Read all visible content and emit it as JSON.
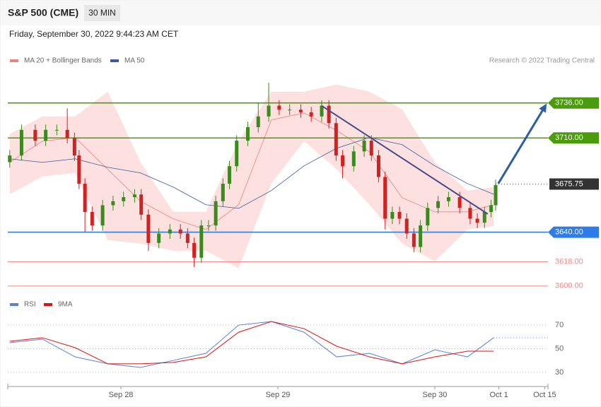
{
  "chart_data": {
    "type": "candlestick",
    "title": "S&P 500 (CME)",
    "timeframe": "30 MIN",
    "subtitle": "Friday, September 30, 2022 9:44:23 AM CET",
    "credit": "Research © 2022 Trading Central",
    "x": [
      7.0,
      8.8,
      10.9,
      12.5,
      14.2,
      15.8,
      16.9,
      17.6,
      18.5,
      19.6,
      21.2,
      22.8,
      24.4,
      26.1,
      27.1,
      28.2,
      29.8,
      31.5,
      33.1,
      34.2,
      35.2,
      36.3,
      37.4,
      38.5,
      39.6,
      40.6,
      41.7,
      43.4,
      45.0,
      46.6,
      48.2,
      49.8,
      51.5,
      53.1,
      54.7,
      55.8,
      56.9,
      57.9,
      59.6,
      61.2,
      62.3,
      63.4,
      64.4,
      65.5,
      66.6,
      67.7,
      68.8,
      69.8,
      70.9,
      72.5,
      74.1,
      75.8,
      77.4,
      78.5,
      79.6,
      80.6,
      81.3
    ],
    "open": [
      3692,
      3697,
      3716,
      3708,
      3716,
      3716,
      3710,
      3697,
      3676,
      3655,
      3645,
      3660,
      3663,
      3666,
      3668,
      3653,
      3632,
      3639,
      3642,
      3639,
      3632,
      3621,
      3645,
      3645,
      3663,
      3676,
      3689,
      3708,
      3718,
      3726,
      3734,
      3731,
      3731,
      3729,
      3726,
      3734,
      3721,
      3697,
      3689,
      3700,
      3708,
      3697,
      3681,
      3650,
      3655,
      3650,
      3639,
      3629,
      3645,
      3658,
      3663,
      3666,
      3658,
      3650,
      3647,
      3655,
      3660
    ],
    "high": [
      3701,
      3720,
      3720,
      3720,
      3720,
      3732,
      3714,
      3701,
      3680,
      3659,
      3664,
      3667,
      3670,
      3672,
      3672,
      3657,
      3643,
      3646,
      3646,
      3643,
      3636,
      3649,
      3649,
      3667,
      3680,
      3693,
      3712,
      3722,
      3736,
      3751,
      3738,
      3735,
      3735,
      3733,
      3738,
      3738,
      3725,
      3701,
      3704,
      3712,
      3712,
      3701,
      3685,
      3659,
      3659,
      3654,
      3643,
      3649,
      3662,
      3667,
      3670,
      3670,
      3662,
      3654,
      3659,
      3664,
      3679
    ],
    "low": [
      3688,
      3693,
      3704,
      3704,
      3712,
      3706,
      3693,
      3672,
      3640,
      3641,
      3641,
      3656,
      3659,
      3662,
      3649,
      3626,
      3628,
      3635,
      3635,
      3628,
      3614,
      3617,
      3641,
      3641,
      3659,
      3672,
      3685,
      3704,
      3714,
      3722,
      3727,
      3727,
      3725,
      3722,
      3722,
      3717,
      3693,
      3680,
      3685,
      3696,
      3693,
      3677,
      3642,
      3646,
      3646,
      3635,
      3625,
      3625,
      3641,
      3654,
      3659,
      3654,
      3646,
      3643,
      3643,
      3651,
      3656
    ],
    "close": [
      3697,
      3716,
      3708,
      3716,
      3716,
      3710,
      3697,
      3676,
      3655,
      3645,
      3660,
      3663,
      3666,
      3668,
      3653,
      3632,
      3639,
      3642,
      3639,
      3632,
      3621,
      3645,
      3645,
      3663,
      3676,
      3689,
      3708,
      3718,
      3726,
      3734,
      3731,
      3731,
      3729,
      3726,
      3734,
      3721,
      3697,
      3689,
      3700,
      3708,
      3697,
      3681,
      3650,
      3655,
      3650,
      3639,
      3629,
      3645,
      3658,
      3663,
      3666,
      3658,
      3650,
      3647,
      3655,
      3660,
      3675
    ],
    "up_color": "#3a8a1e",
    "down_color": "#d32020",
    "xlim": [
      6.7,
      89.3
    ],
    "xticks": [
      {
        "value": 24,
        "label": "Sep 28"
      },
      {
        "value": 48,
        "label": "Sep 29"
      },
      {
        "value": 72,
        "label": "Sep 30"
      },
      {
        "value": 81.8,
        "label": "Oct 1"
      },
      {
        "value": 88.8,
        "label": "Oct 15"
      }
    ],
    "ylim": [
      3592,
      3760
    ],
    "overlays": {
      "x": [
        7,
        12,
        17,
        22,
        27,
        32,
        37,
        42,
        47,
        52,
        57,
        62,
        67,
        72,
        77,
        81
      ],
      "ma20": {
        "name": "MA 20 + Bollinger Bands",
        "color": "#f08080",
        "values": [
          3691.9,
          3707.6,
          3710.3,
          3686.6,
          3663,
          3649.9,
          3642,
          3660.4,
          3723.4,
          3728.6,
          3715.5,
          3699.8,
          3665.6,
          3655.1,
          3655.1,
          3660.4
        ]
      },
      "band_color": "#fde1e1",
      "band_upper": [
        3712.9,
        3726,
        3726,
        3744.4,
        3691.9,
        3655.1,
        3655.1,
        3707.6,
        3744.4,
        3744.4,
        3749.7,
        3744.4,
        3731.3,
        3691.9,
        3670.9,
        3673.5
      ],
      "band_lower": [
        3668.2,
        3681.4,
        3684,
        3634.1,
        3631.5,
        3626.2,
        3626.2,
        3613.1,
        3676.1,
        3707.6,
        3686.6,
        3660.4,
        3631.5,
        3618.4,
        3642,
        3644.6
      ],
      "ma50": {
        "name": "MA 50",
        "color": "#3a5a9a",
        "values": [
          3694.5,
          3691.9,
          3694.5,
          3688.2,
          3684,
          3673.5,
          3660.4,
          3657.7,
          3670.9,
          3689.3,
          3702.4,
          3710.3,
          3705,
          3689.3,
          3676.1,
          3668.2
        ]
      }
    },
    "levels": [
      {
        "value": 3736,
        "label": "3736.00",
        "color": "#4c9a0e",
        "style": "box"
      },
      {
        "value": 3710,
        "label": "3710.00",
        "color": "#4c9a0e",
        "style": "box"
      },
      {
        "value": 3640,
        "label": "3640.00",
        "color": "#2f7be8",
        "style": "box"
      },
      {
        "value": 3618,
        "label": "3618.00",
        "color": "#f08a8a",
        "style": "text"
      },
      {
        "value": 3600,
        "label": "3600.00",
        "color": "#f08a8a",
        "style": "text"
      },
      {
        "value": 3675.75,
        "label": "3675.75",
        "color": "#333333",
        "style": "last"
      }
    ],
    "trendline": {
      "x": [
        54.7,
        80.1
      ],
      "values": [
        3733.9,
        3653.5
      ],
      "color": "#464a8a"
    },
    "arrow": {
      "x": [
        81.7,
        89.1
      ],
      "values": [
        3676.1,
        3735.5
      ],
      "color": "#2a5ea8"
    },
    "rsi": {
      "ylim": [
        24,
        79
      ],
      "yticks": [
        30,
        50,
        70
      ],
      "series": [
        {
          "name": "RSI",
          "color": "#5b7fd6",
          "values": [
            55.1,
            58.1,
            43.1,
            37.2,
            34.2,
            40.1,
            46.1,
            70,
            73,
            64,
            43.1,
            46.1,
            37.2,
            49.1,
            43.1,
            59.3
          ]
        },
        {
          "name": "9MA",
          "color": "#e01010",
          "values": [
            56.3,
            59.3,
            50.9,
            37.2,
            37.2,
            38.4,
            43.1,
            64,
            73,
            67,
            52.1,
            43.1,
            37.2,
            43.1,
            47.9,
            47.9
          ]
        }
      ]
    }
  }
}
